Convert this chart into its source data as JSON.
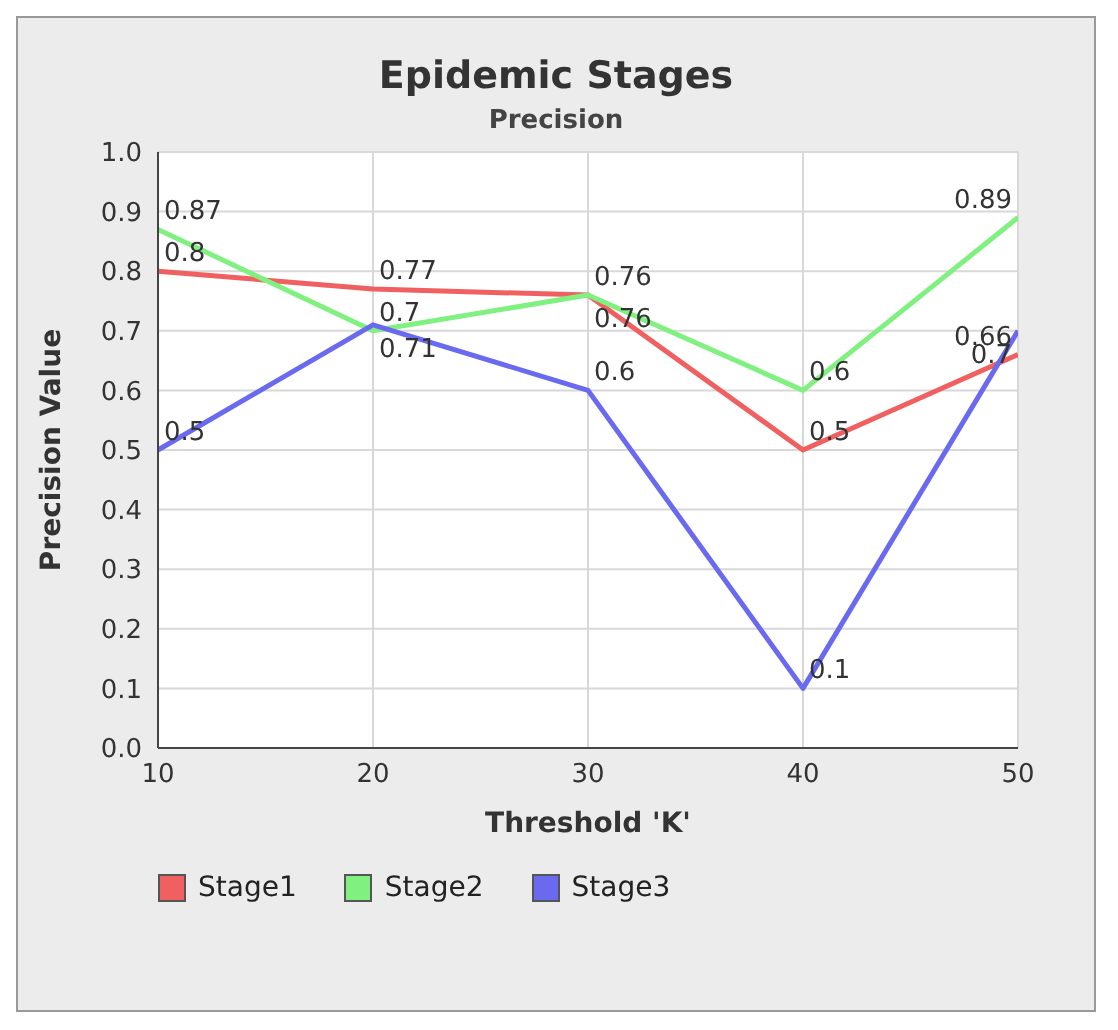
{
  "chart_data": {
    "type": "line",
    "title": "Epidemic Stages",
    "subtitle": "Precision",
    "xlabel": "Threshold  'K'",
    "ylabel": "Precision Value",
    "x": [
      10,
      20,
      30,
      40,
      50
    ],
    "series": [
      {
        "name": "Stage1",
        "color": "#f06060",
        "values": [
          0.8,
          0.77,
          0.76,
          0.5,
          0.66
        ]
      },
      {
        "name": "Stage2",
        "color": "#80f080",
        "values": [
          0.87,
          0.7,
          0.76,
          0.6,
          0.89
        ]
      },
      {
        "name": "Stage3",
        "color": "#6a6af0",
        "values": [
          0.5,
          0.71,
          0.6,
          0.1,
          0.7
        ]
      }
    ],
    "xlim": [
      10,
      50
    ],
    "xticks": [
      10,
      20,
      30,
      40,
      50
    ],
    "ylim": [
      0,
      1
    ],
    "yticks": [
      {
        "value": 0,
        "label": "0.0"
      },
      0.1,
      0.2,
      0.3,
      0.4,
      0.5,
      0.6,
      0.7,
      0.8,
      0.9,
      {
        "value": 1,
        "label": "1.0"
      }
    ],
    "grid": true,
    "legend": "bottom left",
    "data_labels": true,
    "marker": "none",
    "line_style": "solid"
  }
}
